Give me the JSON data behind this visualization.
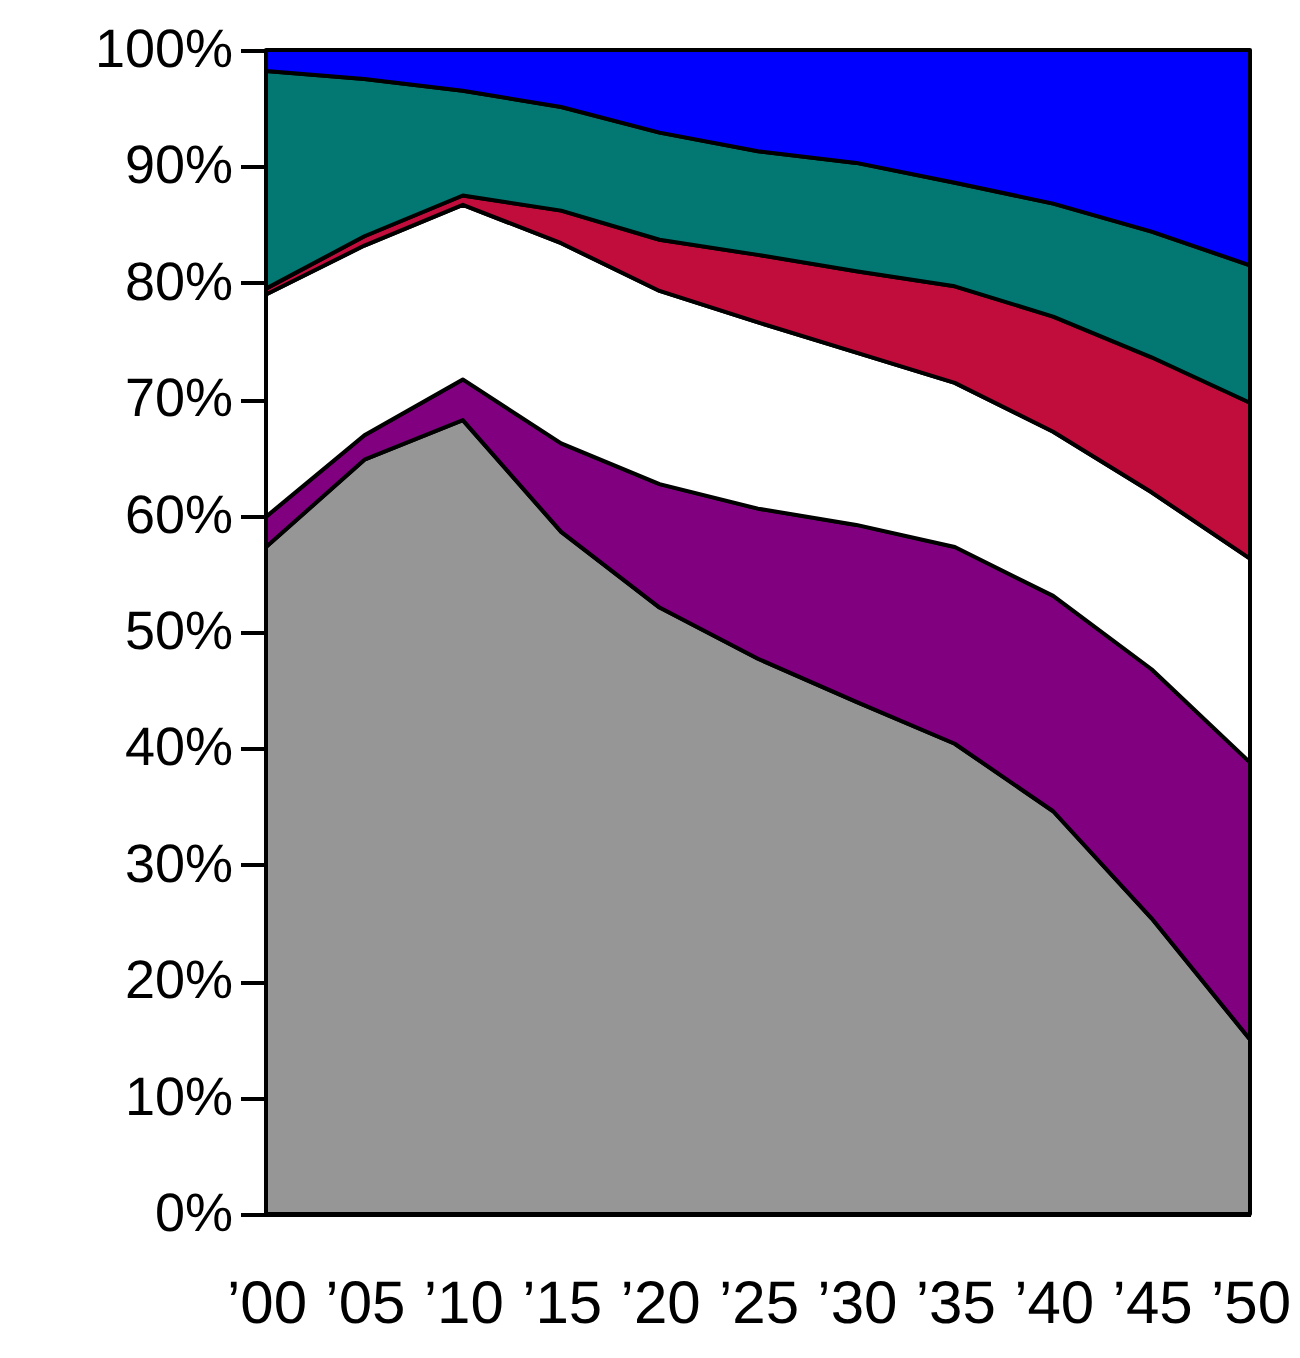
{
  "chart_data": {
    "type": "area",
    "stacked": true,
    "categories": [
      "’00",
      "’05",
      "’10",
      "’15",
      "’20",
      "’25",
      "’30",
      "’35",
      "’40",
      "’45",
      "’50"
    ],
    "ylim": [
      0,
      100
    ],
    "yticks": [
      {
        "value": 0,
        "label": "0%"
      },
      {
        "value": 10,
        "label": "10%"
      },
      {
        "value": 20,
        "label": "20%"
      },
      {
        "value": 30,
        "label": "30%"
      },
      {
        "value": 40,
        "label": "40%"
      },
      {
        "value": 50,
        "label": "50%"
      },
      {
        "value": 60,
        "label": "60%"
      },
      {
        "value": 70,
        "label": "70%"
      },
      {
        "value": 80,
        "label": "80%"
      },
      {
        "value": 90,
        "label": "90%"
      },
      {
        "value": 100,
        "label": "100%"
      }
    ],
    "series": [
      {
        "color": "#969696",
        "values": [
          57.3,
          64.8,
          68.2,
          58.6,
          52.1,
          47.7,
          44.0,
          40.4,
          34.6,
          25.4,
          15.0
        ]
      },
      {
        "color": "#800080",
        "values": [
          2.6,
          2.1,
          3.5,
          7.6,
          10.6,
          12.9,
          15.2,
          16.9,
          18.5,
          21.4,
          23.8
        ]
      },
      {
        "color": "#ffffff",
        "values": [
          19.1,
          16.3,
          15.0,
          17.2,
          16.6,
          16.0,
          14.8,
          14.1,
          14.1,
          15.2,
          17.5
        ]
      },
      {
        "color": "#c00d3c",
        "values": [
          0.5,
          0.8,
          0.8,
          2.8,
          4.4,
          5.8,
          7.0,
          8.3,
          9.9,
          11.6,
          13.4
        ]
      },
      {
        "color": "#037872",
        "values": [
          18.7,
          13.5,
          9.0,
          8.9,
          9.2,
          8.9,
          9.3,
          8.9,
          9.7,
          10.8,
          11.8
        ]
      },
      {
        "color": "#0000ff",
        "values": [
          1.8,
          2.5,
          3.5,
          4.9,
          7.1,
          8.7,
          9.7,
          11.4,
          13.2,
          15.6,
          18.5
        ]
      }
    ]
  }
}
